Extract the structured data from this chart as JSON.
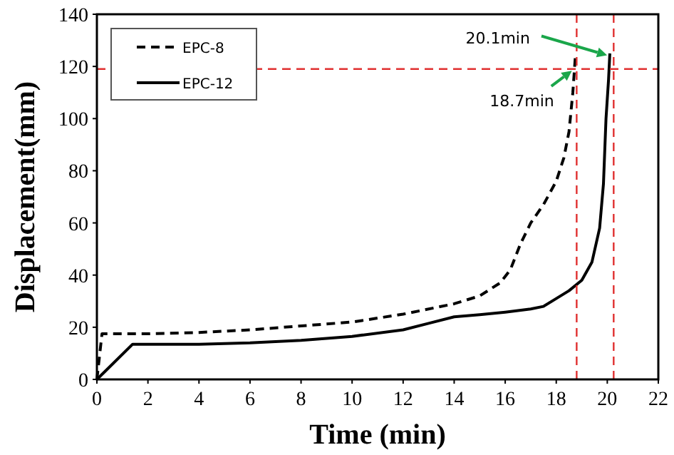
{
  "chart_data": {
    "type": "line",
    "xlabel": "Time (min)",
    "ylabel": "Displacement(mm)",
    "xlim": [
      0,
      22
    ],
    "xticks": [
      0,
      2,
      4,
      6,
      8,
      10,
      12,
      14,
      16,
      18,
      20,
      22
    ],
    "ylim": [
      0,
      140
    ],
    "yticks": [
      0,
      20,
      40,
      60,
      80,
      100,
      120,
      140
    ],
    "grid": false,
    "legend": "top left",
    "marker": "none",
    "series": [
      {
        "name": "EPC-8",
        "color": "#000000",
        "line_style": "dashed",
        "x": [
          0,
          0.2,
          2,
          4,
          6,
          8,
          10,
          12,
          14,
          15,
          15.8,
          16.2,
          16.6,
          17,
          17.5,
          18,
          18.3,
          18.5,
          18.65,
          18.75
        ],
        "values": [
          0,
          17.5,
          17.5,
          18,
          19,
          20.5,
          22,
          25,
          29,
          32,
          37,
          42,
          52,
          60,
          67,
          76,
          85,
          95,
          110,
          124
        ]
      },
      {
        "name": "EPC-12",
        "color": "#000000",
        "line_style": "solid",
        "x": [
          0,
          1.4,
          4,
          6,
          8,
          10,
          12,
          13,
          14,
          15,
          16,
          17,
          17.5,
          18,
          18.5,
          19,
          19.4,
          19.7,
          19.85,
          19.95,
          20.05,
          20.1
        ],
        "values": [
          0,
          13.5,
          13.5,
          14,
          15,
          16.5,
          19,
          21.5,
          24,
          24.8,
          25.8,
          27,
          28,
          31,
          34,
          38,
          45,
          58,
          75,
          100,
          115,
          125
        ]
      }
    ],
    "ref_lines": [
      {
        "axis": "x",
        "value": 18.8,
        "color": "#e03030",
        "line_style": "dashed"
      },
      {
        "axis": "x",
        "value": 20.25,
        "color": "#e03030",
        "line_style": "dashed"
      },
      {
        "axis": "y",
        "value": 119,
        "color": "#e03030",
        "line_style": "dashed"
      }
    ],
    "annotations": [
      {
        "text": "20.1min",
        "x": 20.1,
        "y": 124
      },
      {
        "text": "18.7min",
        "x": 18.7,
        "y": 119
      }
    ]
  }
}
